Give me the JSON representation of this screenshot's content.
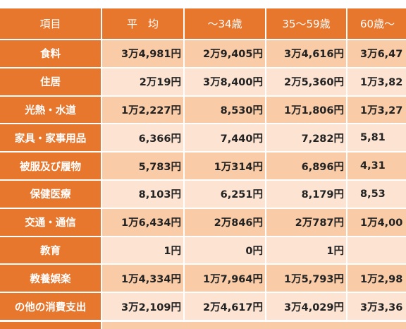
{
  "table": {
    "header": [
      "項目",
      "平　均",
      "～34歳",
      "35～59歳",
      "60歳～"
    ],
    "rows": [
      [
        "食料",
        "3万4,981円",
        "2万9,405円",
        "3万4,616円",
        "3万6,47"
      ],
      [
        "住居",
        "2万19円",
        "3万8,400円",
        "2万5,360円",
        "1万3,82"
      ],
      [
        "光熱・水道",
        "1万2,227円",
        "8,530円",
        "1万1,806円",
        "1万3,27"
      ],
      [
        "家具・家事用品",
        "6,366円",
        "7,440円",
        "7,282円",
        "5,81"
      ],
      [
        "被服及び履物",
        "5,783円",
        "1万314円",
        "6,896円",
        "4,31"
      ],
      [
        "保健医療",
        "8,103円",
        "6,251円",
        "8,179円",
        "8,53"
      ],
      [
        "交通・通信",
        "1万6,434円",
        "2万846円",
        "2万787円",
        "1万4,00"
      ],
      [
        "教育",
        "1円",
        "0円",
        "1円",
        null
      ],
      [
        "教養娯楽",
        "1万4,334円",
        "1万7,964円",
        "1万5,793円",
        "1万2,98"
      ],
      [
        "の他の消費支出",
        "3万2,109円",
        "2万4,617円",
        "3万4,029円",
        "3万3,36"
      ]
    ]
  }
}
